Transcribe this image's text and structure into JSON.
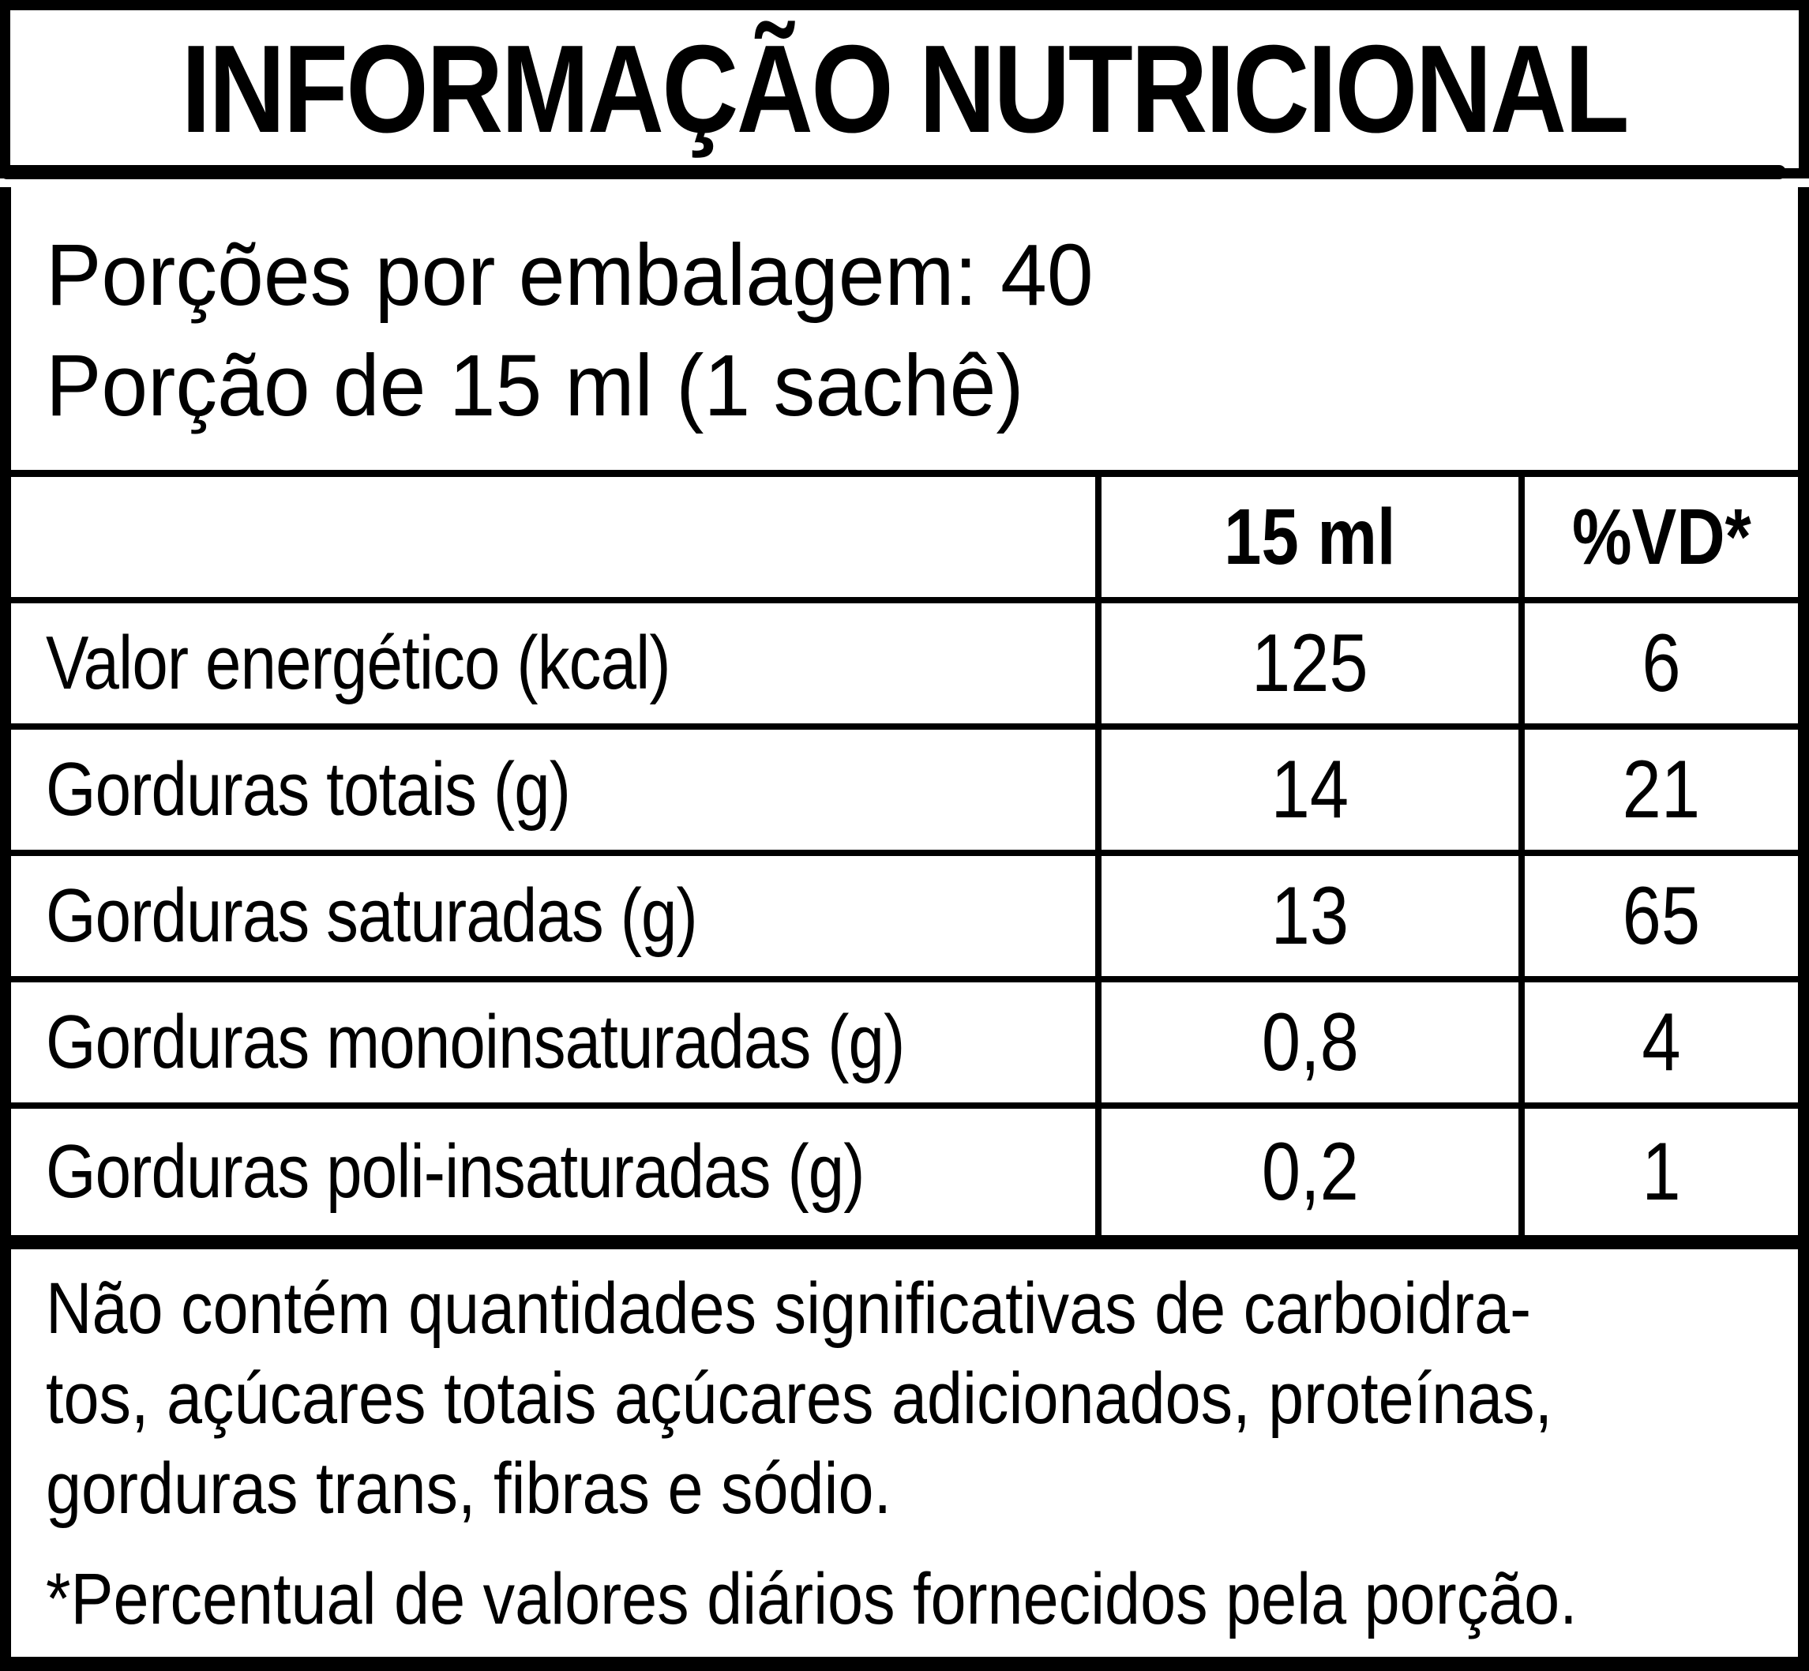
{
  "title": "INFORMAÇÃO NUTRICIONAL",
  "serving_info": {
    "servings_per_package": "Porções por embalagem: 40",
    "serving_size": "Porção de 15 ml (1 sachê)"
  },
  "table": {
    "header": {
      "amount": "15 ml",
      "daily_value": "%VD*"
    },
    "rows": [
      {
        "label": "Valor energético (kcal)",
        "amount": "125",
        "daily_value": "6"
      },
      {
        "label": "Gorduras totais (g)",
        "amount": "14",
        "daily_value": "21"
      },
      {
        "label": "Gorduras saturadas (g)",
        "amount": "13",
        "daily_value": "65"
      },
      {
        "label": "Gorduras monoinsaturadas (g)",
        "amount": "0,8",
        "daily_value": "4"
      },
      {
        "label": "Gorduras poli-insaturadas (g)",
        "amount": "0,2",
        "daily_value": "1"
      }
    ]
  },
  "footnotes": {
    "no_significant_line1": "Não contém quantidades significativas de carboidra-",
    "no_significant_line2": "tos, açúcares totais açúcares adicionados, proteínas,",
    "no_significant_line3": "gorduras trans, fibras e sódio.",
    "daily_value_note": "*Percentual de valores diários fornecidos pela porção."
  },
  "colors": {
    "text": "#000000",
    "background": "#ffffff",
    "border": "#000000"
  }
}
